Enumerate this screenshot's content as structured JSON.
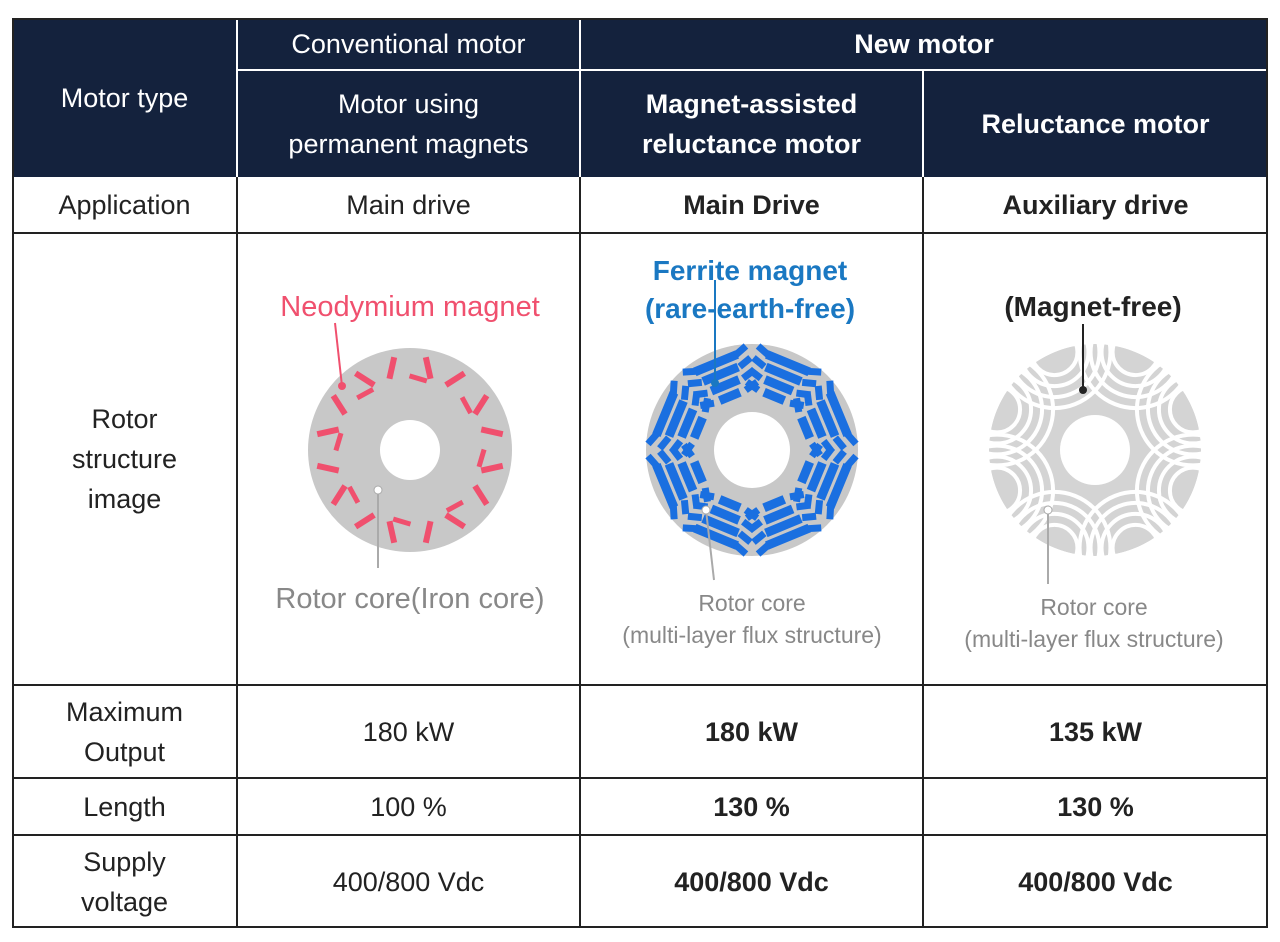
{
  "header": {
    "motor_type": "Motor type",
    "conventional": "Conventional motor",
    "new": "New motor",
    "col1": "Motor using permanent magnets",
    "col2": "Magnet-assisted reluctance motor",
    "col3": "Reluctance motor"
  },
  "rows": {
    "application": {
      "label": "Application",
      "values": [
        "Main drive",
        "Main Drive",
        "Auxiliary drive"
      ]
    },
    "rotor": {
      "label": "Rotor structure image",
      "col1": {
        "magnet_label": "Neodymium magnet",
        "core_label": "Rotor core(Iron core)"
      },
      "col2": {
        "magnet_label_1": "Ferrite magnet",
        "magnet_label_2": "(rare-earth-free)",
        "core_label_1": "Rotor core",
        "core_label_2": "(multi-layer flux structure)"
      },
      "col3": {
        "magnet_label": "(Magnet-free)",
        "core_label_1": "Rotor core",
        "core_label_2": "(multi-layer flux structure)"
      }
    },
    "max_output": {
      "label": "Maximum Output",
      "values": [
        "180 kW",
        "180 kW",
        "135 kW"
      ]
    },
    "length": {
      "label": "Length",
      "values": [
        "100 %",
        "130 %",
        "130 %"
      ]
    },
    "supply_voltage": {
      "label": "Supply voltage",
      "values": [
        "400/800 Vdc",
        "400/800 Vdc",
        "400/800 Vdc"
      ]
    }
  },
  "colors": {
    "header_bg": "#14223d",
    "neodymium": "#f0506e",
    "ferrite": "#1a6fe0",
    "ferrite_text": "#1a78c2",
    "core": "#c8c8c8",
    "core_text": "#888888"
  }
}
